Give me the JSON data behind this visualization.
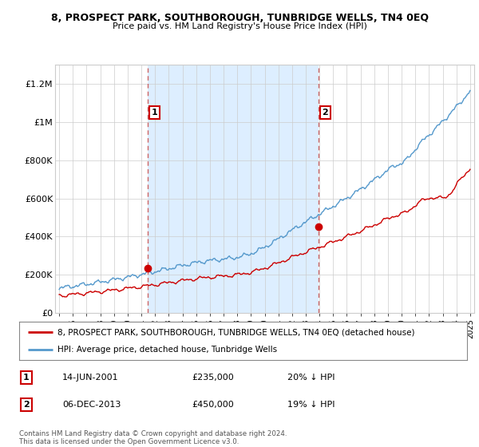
{
  "title": "8, PROSPECT PARK, SOUTHBOROUGH, TUNBRIDGE WELLS, TN4 0EQ",
  "subtitle": "Price paid vs. HM Land Registry's House Price Index (HPI)",
  "fig_bg_color": "#ffffff",
  "plot_bg_color": "#ffffff",
  "highlight_color": "#ddeeff",
  "ylim": [
    0,
    1300000
  ],
  "yticks": [
    0,
    200000,
    400000,
    600000,
    800000,
    1000000,
    1200000
  ],
  "ytick_labels": [
    "£0",
    "£200K",
    "£400K",
    "£600K",
    "£800K",
    "£1M",
    "£1.2M"
  ],
  "sale1_date": 2001.45,
  "sale1_price": 235000,
  "sale1_label": "1",
  "sale2_date": 2013.92,
  "sale2_price": 450000,
  "sale2_label": "2",
  "legend_house": "8, PROSPECT PARK, SOUTHBOROUGH, TUNBRIDGE WELLS, TN4 0EQ (detached house)",
  "legend_hpi": "HPI: Average price, detached house, Tunbridge Wells",
  "footer": "Contains HM Land Registry data © Crown copyright and database right 2024.\nThis data is licensed under the Open Government Licence v3.0.",
  "house_color": "#cc0000",
  "hpi_color": "#5599cc",
  "dash_color": "#cc6666",
  "grid_color": "#cccccc",
  "xstart": 1995,
  "xend": 2025
}
